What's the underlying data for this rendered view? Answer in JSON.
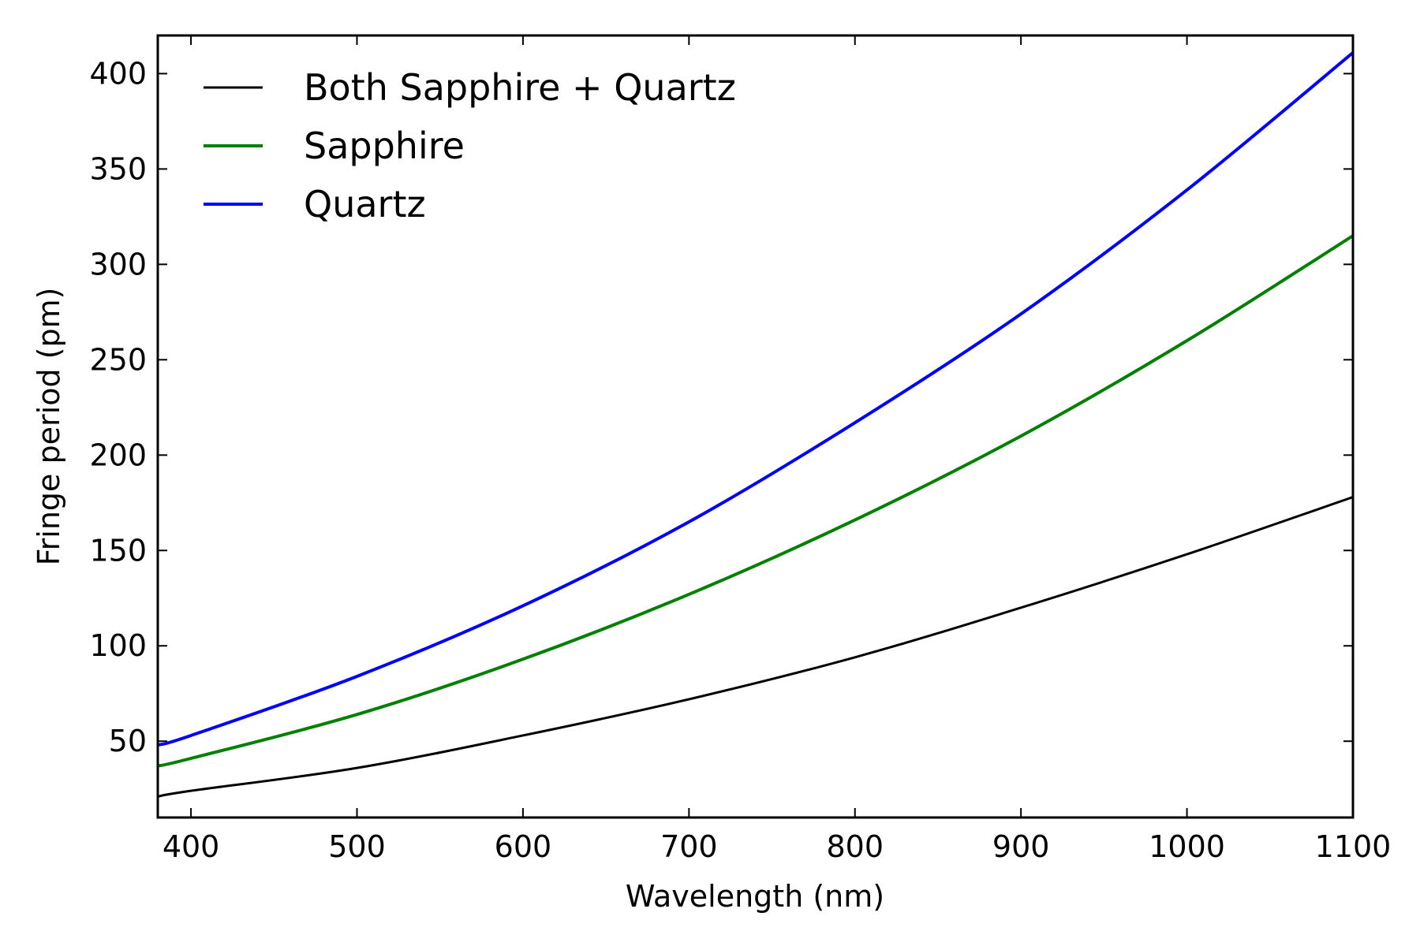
{
  "chart_data": {
    "type": "line",
    "title": "",
    "xlabel": "Wavelength (nm)",
    "ylabel": "Fringe period (pm)",
    "xlim": [
      380,
      1100
    ],
    "ylim": [
      10,
      420
    ],
    "xticks": [
      400,
      500,
      600,
      700,
      800,
      900,
      1000,
      1100
    ],
    "xtick_labels": [
      "400",
      "500",
      "600",
      "700",
      "800",
      "900",
      "1000",
      "1100"
    ],
    "yticks": [
      50,
      100,
      150,
      200,
      250,
      300,
      350,
      400
    ],
    "ytick_labels": [
      "50",
      "100",
      "150",
      "200",
      "250",
      "300",
      "350",
      "400"
    ],
    "grid": false,
    "legend_position": "top-left",
    "x": [
      380,
      400,
      500,
      600,
      700,
      800,
      900,
      1000,
      1100
    ],
    "series": [
      {
        "name": "Both Sapphire + Quartz",
        "color": "#000000",
        "values": [
          21,
          24,
          36,
          53,
          72,
          94,
          120,
          148,
          178
        ]
      },
      {
        "name": "Sapphire",
        "color": "#008000",
        "values": [
          37,
          41,
          64,
          93,
          127,
          166,
          210,
          260,
          315
        ]
      },
      {
        "name": "Quartz",
        "color": "#0000ff",
        "values": [
          48,
          53,
          84,
          121,
          165,
          217,
          274,
          339,
          411
        ]
      }
    ]
  }
}
